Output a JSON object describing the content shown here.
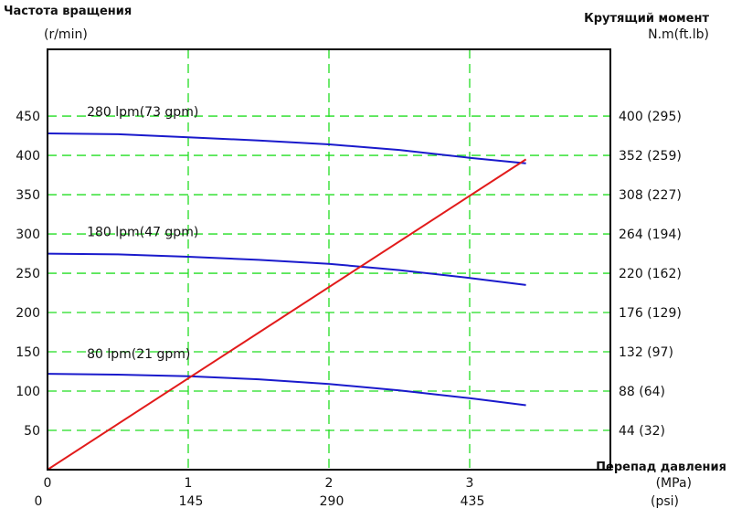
{
  "chart_data": {
    "type": "line",
    "left_axis": {
      "title": "Частота вращения",
      "unit": "(r/min)",
      "ticks": [
        50,
        100,
        150,
        200,
        250,
        300,
        350,
        400,
        450
      ],
      "range": [
        0,
        535
      ]
    },
    "right_axis": {
      "title": "Крутящий момент",
      "unit": "N.m(ft.lb)",
      "ticks": [
        "44 (32)",
        "88 (64)",
        "132 (97)",
        "176 (129)",
        "220 (162)",
        "264 (194)",
        "308 (227)",
        "352 (259)",
        "400 (295)"
      ]
    },
    "x_axis": {
      "title": "Перепад давления",
      "unit_mpa": "(MPa)",
      "unit_psi": "(psi)",
      "ticks_mpa": [
        "0",
        "1",
        "2",
        "3"
      ],
      "ticks_psi": [
        "0",
        "145",
        "290",
        "435"
      ],
      "range": [
        0,
        4
      ]
    },
    "grid": true,
    "series": [
      {
        "name": "280 lpm(73 gpm)",
        "color": "#1a1acc",
        "label_at": [
          0.28,
          450
        ],
        "x": [
          0,
          0.5,
          1.0,
          1.5,
          2.0,
          2.5,
          3.0,
          3.4
        ],
        "y": [
          428,
          427,
          423,
          419,
          414,
          407,
          397,
          390
        ]
      },
      {
        "name": "180 lpm(47 gpm)",
        "color": "#1a1acc",
        "label_at": [
          0.28,
          297
        ],
        "x": [
          0,
          0.5,
          1.0,
          1.5,
          2.0,
          2.5,
          3.0,
          3.4
        ],
        "y": [
          275,
          274,
          271,
          267,
          262,
          254,
          244,
          235
        ]
      },
      {
        "name": "80 lpm(21 gpm)",
        "color": "#1a1acc",
        "label_at": [
          0.28,
          142
        ],
        "x": [
          0,
          0.5,
          1.0,
          1.5,
          2.0,
          2.5,
          3.0,
          3.4
        ],
        "y": [
          122,
          121,
          119,
          115,
          109,
          101,
          91,
          82
        ]
      },
      {
        "name": "",
        "color": "#e21b1b",
        "x": [
          0,
          3.4
        ],
        "y": [
          0,
          395
        ]
      }
    ]
  }
}
